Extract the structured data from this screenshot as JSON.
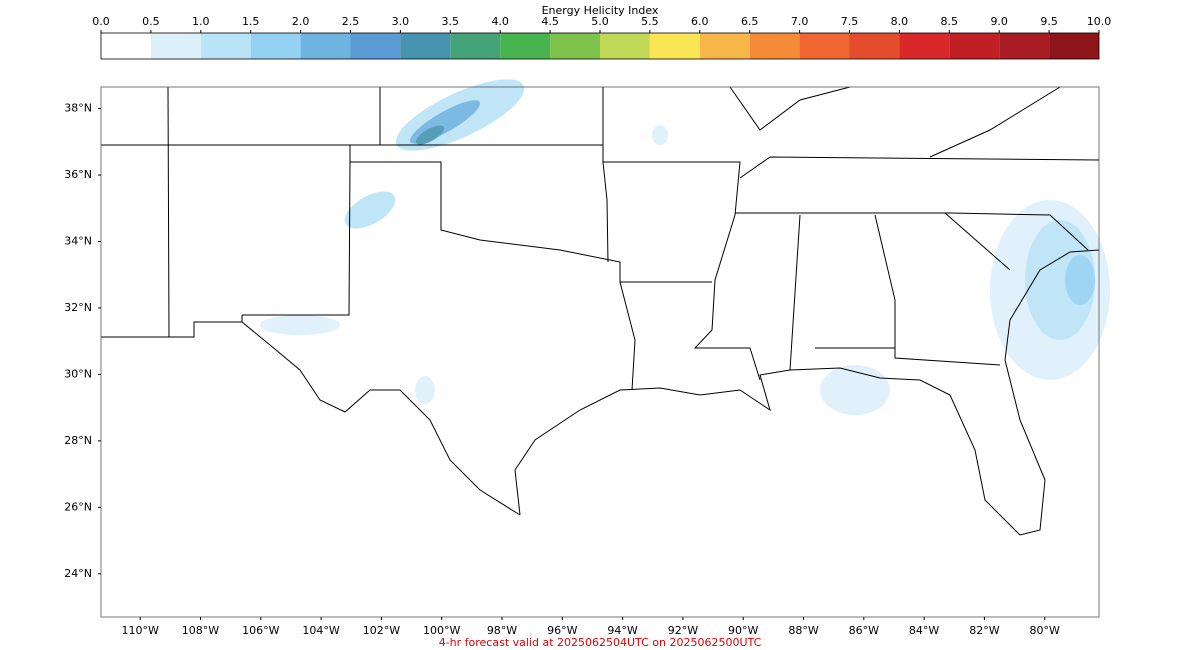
{
  "chart_data": {
    "type": "map",
    "title": "Energy Helicity Index",
    "colorbar": {
      "colors": [
        "#ffffff",
        "#ddf0fb",
        "#b9e3f7",
        "#94d1f2",
        "#6fb3e0",
        "#5b9bd5",
        "#4694b0",
        "#45a37a",
        "#48b450",
        "#7dc24b",
        "#c2d957",
        "#fae655",
        "#f9b648",
        "#f58a37",
        "#f16530",
        "#e54c2c",
        "#d8282a",
        "#c01f26",
        "#a81c24",
        "#8e1519"
      ],
      "ticks": [
        {
          "value": 0,
          "label": "0.0"
        },
        {
          "value": 0.5,
          "label": "0.5"
        },
        {
          "value": 1,
          "label": "1.0"
        },
        {
          "value": 1.5,
          "label": "1.5"
        },
        {
          "value": 2,
          "label": "2.0"
        },
        {
          "value": 2.5,
          "label": "2.5"
        },
        {
          "value": 3,
          "label": "3.0"
        },
        {
          "value": 3.5,
          "label": "3.5"
        },
        {
          "value": 4,
          "label": "4.0"
        },
        {
          "value": 4.5,
          "label": "4.5"
        },
        {
          "value": 5,
          "label": "5.0"
        },
        {
          "value": 5.5,
          "label": "5.5"
        },
        {
          "value": 6,
          "label": "6.0"
        },
        {
          "value": 6.5,
          "label": "6.5"
        },
        {
          "value": 7,
          "label": "7.0"
        },
        {
          "value": 7.5,
          "label": "7.5"
        },
        {
          "value": 8,
          "label": "8.0"
        },
        {
          "value": 8.5,
          "label": "8.5"
        },
        {
          "value": 9,
          "label": "9.0"
        },
        {
          "value": 9.5,
          "label": "9.5"
        },
        {
          "value": 10,
          "label": "10.0"
        }
      ]
    },
    "xlim": [
      -111.3,
      -78.2
    ],
    "xticks": [
      {
        "value": -110,
        "label": "110°W"
      },
      {
        "value": -108,
        "label": "108°W"
      },
      {
        "value": -106,
        "label": "106°W"
      },
      {
        "value": -104,
        "label": "104°W"
      },
      {
        "value": -102,
        "label": "102°W"
      },
      {
        "value": -100,
        "label": "100°W"
      },
      {
        "value": -98,
        "label": "98°W"
      },
      {
        "value": -96,
        "label": "96°W"
      },
      {
        "value": -94,
        "label": "94°W"
      },
      {
        "value": -92,
        "label": "92°W"
      },
      {
        "value": -90,
        "label": "90°W"
      },
      {
        "value": -88,
        "label": "88°W"
      },
      {
        "value": -86,
        "label": "86°W"
      },
      {
        "value": -84,
        "label": "84°W"
      },
      {
        "value": -82,
        "label": "82°W"
      },
      {
        "value": -80,
        "label": "80°W"
      }
    ],
    "ylim": [
      22.7,
      38.65
    ],
    "yticks": [
      {
        "value": 24,
        "label": "24°N"
      },
      {
        "value": 26,
        "label": "26°N"
      },
      {
        "value": 28,
        "label": "28°N"
      },
      {
        "value": 30,
        "label": "30°N"
      },
      {
        "value": 32,
        "label": "32°N"
      },
      {
        "value": 34,
        "label": "34°N"
      },
      {
        "value": 36,
        "label": "36°N"
      },
      {
        "value": 38,
        "label": "38°N"
      }
    ],
    "footer": "4-hr forecast valid at 2025062504UTC on 2025062500UTC"
  }
}
